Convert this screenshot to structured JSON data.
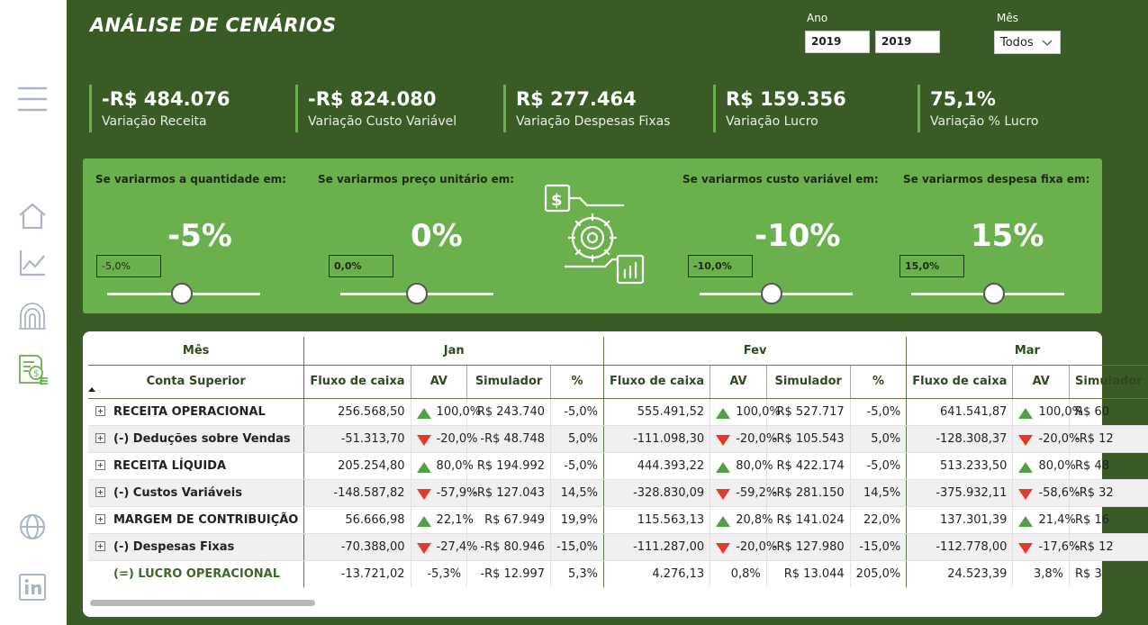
{
  "header": {
    "title": "ANÁLISE DE CENÁRIOS",
    "year_label": "Ano",
    "year_from": "2019",
    "year_to": "2019",
    "month_label": "Mês",
    "month_value": "Todos"
  },
  "kpis": [
    {
      "value": "-R$ 484.076",
      "label": "Variação Receita"
    },
    {
      "value": "-R$ 824.080",
      "label": "Variação Custo Variável"
    },
    {
      "value": "R$ 277.464",
      "label": "Variação Despesas Fixas"
    },
    {
      "value": "R$ 159.356",
      "label": "Variação Lucro"
    },
    {
      "value": "75,1%",
      "label": "Variação % Lucro"
    }
  ],
  "sliders": [
    {
      "title": "Se variarmos a quantidade em:",
      "big": "-5%",
      "box": "-5,0%",
      "level": -0.05
    },
    {
      "title": "Se variarmos preço unitário em:",
      "big": "0%",
      "box": "0,0%",
      "level": 0.0
    },
    {
      "title": "Se variarmos custo variável em:",
      "big": "-10%",
      "box": "-10,0%",
      "level": -0.1
    },
    {
      "title": "Se variarmos despesa fixa em:",
      "big": "15%",
      "box": "15,0%",
      "level": 0.15
    }
  ],
  "table": {
    "month_header": "Mês",
    "account_header": "Conta Superior",
    "months": [
      "Jan",
      "Fev",
      "Mar"
    ],
    "columns": [
      "Fluxo de caixa",
      "AV",
      "Simulador",
      "%"
    ],
    "rows": [
      {
        "account": "RECEITA OPERACIONAL",
        "expandable": true,
        "jan": [
          "256.568,50",
          "100,0%",
          "R$ 243.740",
          "-5,0%"
        ],
        "fev": [
          "555.491,52",
          "100,0%",
          "R$ 527.717",
          "-5,0%"
        ],
        "mar": [
          "641.541,87",
          "100,0%",
          "R$ 60"
        ],
        "trend": "up"
      },
      {
        "account": "(-) Deduções sobre Vendas",
        "expandable": true,
        "jan": [
          "-51.313,70",
          "-20,0%",
          "-R$ 48.748",
          "5,0%"
        ],
        "fev": [
          "-111.098,30",
          "-20,0%",
          "-R$ 105.543",
          "5,0%"
        ],
        "mar": [
          "-128.308,37",
          "-20,0%",
          "-R$ 12"
        ],
        "trend": "down"
      },
      {
        "account": "RECEITA LÍQUIDA",
        "expandable": true,
        "jan": [
          "205.254,80",
          "80,0%",
          "R$ 194.992",
          "-5,0%"
        ],
        "fev": [
          "444.393,22",
          "80,0%",
          "R$ 422.174",
          "-5,0%"
        ],
        "mar": [
          "513.233,50",
          "80,0%",
          "R$ 48"
        ],
        "trend": "up"
      },
      {
        "account": "(-) Custos Variáveis",
        "expandable": true,
        "jan": [
          "-148.587,82",
          "-57,9%",
          "-R$ 127.043",
          "14,5%"
        ],
        "fev": [
          "-328.830,09",
          "-59,2%",
          "-R$ 281.150",
          "14,5%"
        ],
        "mar": [
          "-375.932,11",
          "-58,6%",
          "-R$ 32"
        ],
        "trend": "down"
      },
      {
        "account": "MARGEM DE CONTRIBUIÇÃO",
        "expandable": true,
        "jan": [
          "56.666,98",
          "22,1%",
          "R$ 67.949",
          "19,9%"
        ],
        "fev": [
          "115.563,13",
          "20,8%",
          "R$ 141.024",
          "22,0%"
        ],
        "mar": [
          "137.301,39",
          "21,4%",
          "R$ 16"
        ],
        "trend": "up"
      },
      {
        "account": "(-) Despesas Fixas",
        "expandable": true,
        "jan": [
          "-70.388,00",
          "-27,4%",
          "-R$ 80.946",
          "-15,0%"
        ],
        "fev": [
          "-111.287,00",
          "-20,0%",
          "-R$ 127.980",
          "-15,0%"
        ],
        "mar": [
          "-112.778,00",
          "-17,6%",
          "-R$ 12"
        ],
        "trend": "down"
      },
      {
        "account": "(=) LUCRO OPERACIONAL",
        "expandable": false,
        "jan": [
          "-13.721,02",
          "-5,3%",
          "-R$ 12.997",
          "5,3%"
        ],
        "fev": [
          "4.276,13",
          "0,8%",
          "R$ 13.044",
          "205,0%"
        ],
        "mar": [
          "24.523,39",
          "3,8%",
          "R$ 3"
        ],
        "trend": "none"
      }
    ]
  },
  "icons": {
    "menu": "hamburger-icon",
    "home": "home-icon",
    "chart": "line-chart-icon",
    "fingerprint": "fingerprint-icon",
    "report": "financial-report-icon",
    "globe": "globe-icon",
    "linkedin": "linkedin-icon"
  },
  "colors": {
    "background": "#3a5a26",
    "panel": "#6ab04c",
    "up": "#4fa046",
    "down": "#e03b2e"
  }
}
